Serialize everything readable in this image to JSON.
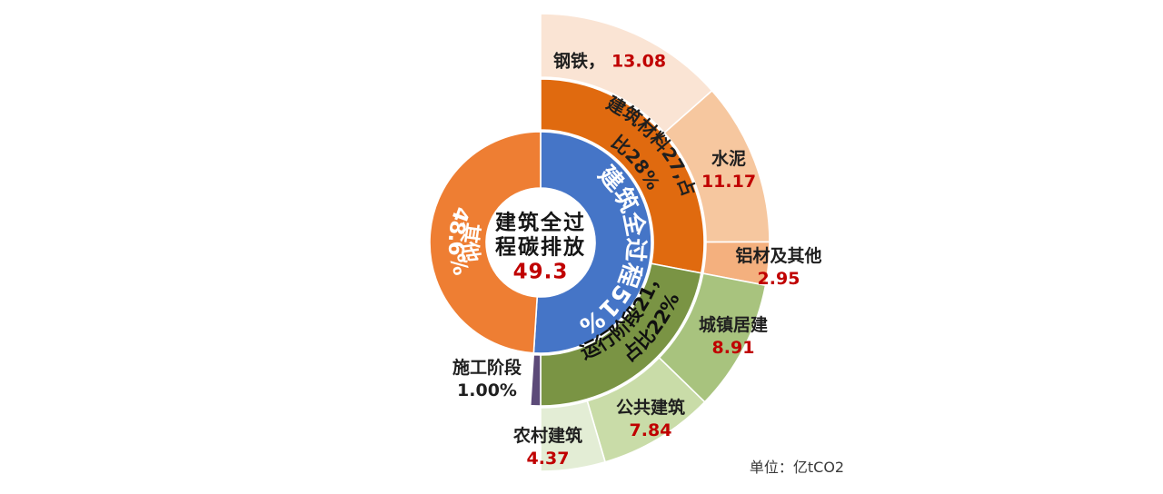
{
  "center": {
    "title_line1": "建筑全过",
    "title_line2": "程碳排放",
    "value": "49.3"
  },
  "curved": {
    "whole_process": "建筑全过程51%",
    "other_line1": "其他",
    "other_line2": "48.6%",
    "materials_line1": "建筑材料27,占",
    "materials_line2": "比28%",
    "operation_line1": "运行阶段21，",
    "operation_line2": "占比22%"
  },
  "labels": {
    "steel": {
      "name": "钢铁，",
      "value": "13.08"
    },
    "cement": {
      "name": "水泥",
      "value": "11.17"
    },
    "aluminum": {
      "name": "铝材及其他",
      "value": "2.95"
    },
    "urban": {
      "name": "城镇居建",
      "value": "8.91"
    },
    "public": {
      "name": "公共建筑",
      "value": "7.84"
    },
    "rural": {
      "name": "农村建筑",
      "value": "4.37"
    },
    "construction": {
      "name": "施工阶段",
      "value": "1.00%"
    },
    "unit": "单位：亿tCO2"
  },
  "colors": {
    "value_red": "#C00000",
    "label_black": "#1f1f1f",
    "blue": "#4575C7",
    "orange": "#EE7E33",
    "dark_orange": "#E06A0F",
    "green": "#7A9444",
    "purple": "#5C4A78",
    "steel": "#FAE4D4",
    "cement": "#F6C79F",
    "aluminum": "#F4B07E",
    "urban": "#A8C37E",
    "public": "#C9DCA8",
    "rural": "#E3EDD5"
  },
  "chart_data": {
    "type": "sunburst",
    "unit": "亿tCO2",
    "center": {
      "label": "建筑全过程碳排放",
      "value": 49.3
    },
    "rings": [
      {
        "name": "inner",
        "r0": 60,
        "r1": 122,
        "segments": [
          {
            "id": "whole-process",
            "label": "建筑全过程",
            "pct": 51,
            "start_pct": 0,
            "span_pct": 51,
            "color": "blue"
          },
          {
            "id": "other",
            "label": "其他",
            "pct": 48.6,
            "start_pct": 51,
            "span_pct": 49,
            "color": "orange"
          }
        ]
      },
      {
        "name": "middle",
        "r0": 124,
        "r1": 180,
        "segments": [
          {
            "id": "building-materials",
            "label": "建筑材料",
            "value": 27,
            "pct": 28,
            "start_pct": 0,
            "span_pct": 28,
            "color": "dark_orange"
          },
          {
            "id": "operation-stage",
            "label": "运行阶段",
            "value": 21,
            "pct": 22,
            "start_pct": 28,
            "span_pct": 22,
            "color": "green"
          },
          {
            "id": "construction-stage",
            "label": "施工阶段",
            "pct": 1.0,
            "start_pct": 50,
            "span_pct": 1,
            "color": "purple"
          }
        ]
      },
      {
        "name": "outer",
        "r0": 182,
        "r1": 252,
        "segments": [
          {
            "id": "steel",
            "label": "钢铁",
            "value": 13.08,
            "start_pct": 0,
            "span_pct": 13.46,
            "color": "steel"
          },
          {
            "id": "cement",
            "label": "水泥",
            "value": 11.17,
            "start_pct": 13.46,
            "span_pct": 11.5,
            "color": "cement"
          },
          {
            "id": "aluminum",
            "label": "铝材及其他",
            "value": 2.95,
            "start_pct": 24.96,
            "span_pct": 3.04,
            "color": "aluminum"
          },
          {
            "id": "urban-residential",
            "label": "城镇居建",
            "value": 8.91,
            "start_pct": 28.0,
            "span_pct": 9.28,
            "color": "urban"
          },
          {
            "id": "public-buildings",
            "label": "公共建筑",
            "value": 7.84,
            "start_pct": 37.28,
            "span_pct": 8.17,
            "color": "public"
          },
          {
            "id": "rural-buildings",
            "label": "农村建筑",
            "value": 4.37,
            "start_pct": 45.45,
            "span_pct": 4.55,
            "color": "rural"
          }
        ]
      }
    ]
  }
}
